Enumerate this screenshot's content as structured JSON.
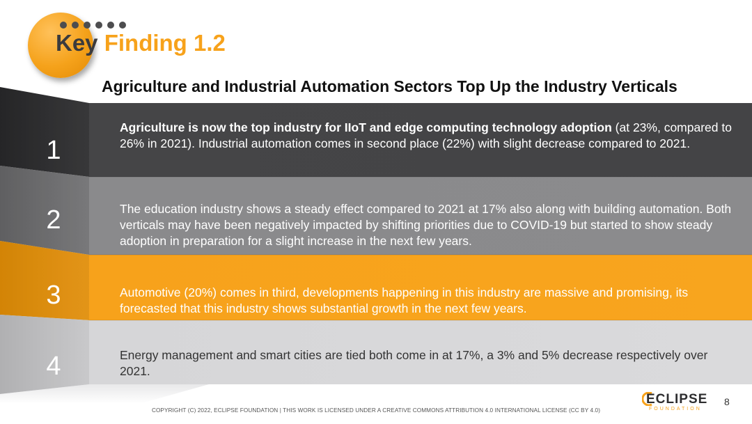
{
  "header": {
    "key_word": "Key",
    "finding_label": "Finding 1.2",
    "subtitle": "Agriculture and Industrial Automation Sectors Top Up the Industry Verticals"
  },
  "findings": [
    {
      "number": "1",
      "bold_text": "Agriculture is now the top industry for IIoT and edge computing technology adoption",
      "text": " (at 23%, compared to 26% in 2021). Industrial automation comes in second place (22%) with slight decrease compared to 2021."
    },
    {
      "number": "2",
      "text": "The education industry shows a steady effect compared to 2021 at 17% also along with building automation. Both verticals may have been negatively impacted by shifting priorities due to COVID-19 but started to show steady adoption in preparation for a slight increase in the next few years."
    },
    {
      "number": "3",
      "text": "Automotive (20%) comes in third, developments happening in this industry are massive and promising, its forecasted that this industry shows substantial growth in the next few years."
    },
    {
      "number": "4",
      "text": "Energy management and smart cities are tied both come in at 17%, a 3% and 5% decrease respectively over 2021."
    }
  ],
  "footer": {
    "copyright": "COPYRIGHT (C) 2022, ECLIPSE FOUNDATION | THIS WORK IS LICENSED UNDER A CREATIVE COMMONS ATTRIBUTION 4.0 INTERNATIONAL LICENSE (CC BY 4.0)",
    "logo_word": "ECLIPSE",
    "logo_sub": "FOUNDATION",
    "page_number": "8"
  },
  "colors": {
    "orange": "#f7a21b",
    "dark_band": "#434345",
    "mid_band": "#8a8a8c",
    "light_band": "#d9d9d9"
  }
}
